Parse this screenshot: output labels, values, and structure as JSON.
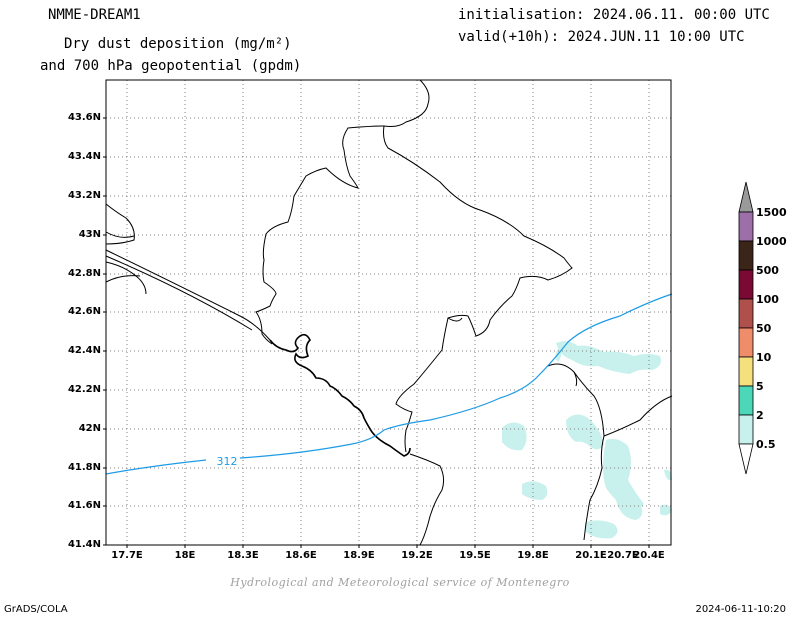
{
  "header": {
    "model": "NMME-DREAM1",
    "title_line1": "Dry dust deposition (mg/m²)",
    "title_line2": "and 700 hPa geopotential (gpdm)",
    "init": "initialisation: 2024.06.11. 00:00 UTC",
    "valid": "valid(+10h): 2024.JUN.11 10:00 UTC"
  },
  "map": {
    "lat_labels": [
      "43.6N",
      "43.4N",
      "43.2N",
      "43N",
      "42.8N",
      "42.6N",
      "42.4N",
      "42.2N",
      "42N",
      "41.8N",
      "41.6N",
      "41.4N"
    ],
    "lon_labels": [
      "17.7E",
      "18E",
      "18.3E",
      "18.6E",
      "18.9E",
      "19.2E",
      "19.5E",
      "19.8E",
      "20.1E",
      "20.4E",
      "20.7E"
    ],
    "contour_label": "312",
    "colors": {
      "contour": "#1e9be6",
      "boundary": "#000000",
      "grid": "#808080",
      "dust_low": "#c8f0ec"
    }
  },
  "colorbar": {
    "levels": [
      "1500",
      "1000",
      "500",
      "100",
      "50",
      "10",
      "5",
      "2",
      "0.5"
    ],
    "colors": [
      "#9a9a9a",
      "#9d6fa9",
      "#3b2518",
      "#7a0a33",
      "#b0504d",
      "#ef8c6a",
      "#f5e07e",
      "#4bd7b8",
      "#c8f0ec"
    ]
  },
  "footer": {
    "credit": "Hydrological and Meteorological service of Montenegro",
    "software": "GrADS/COLA",
    "timestamp": "2024-06-11-10:20"
  }
}
